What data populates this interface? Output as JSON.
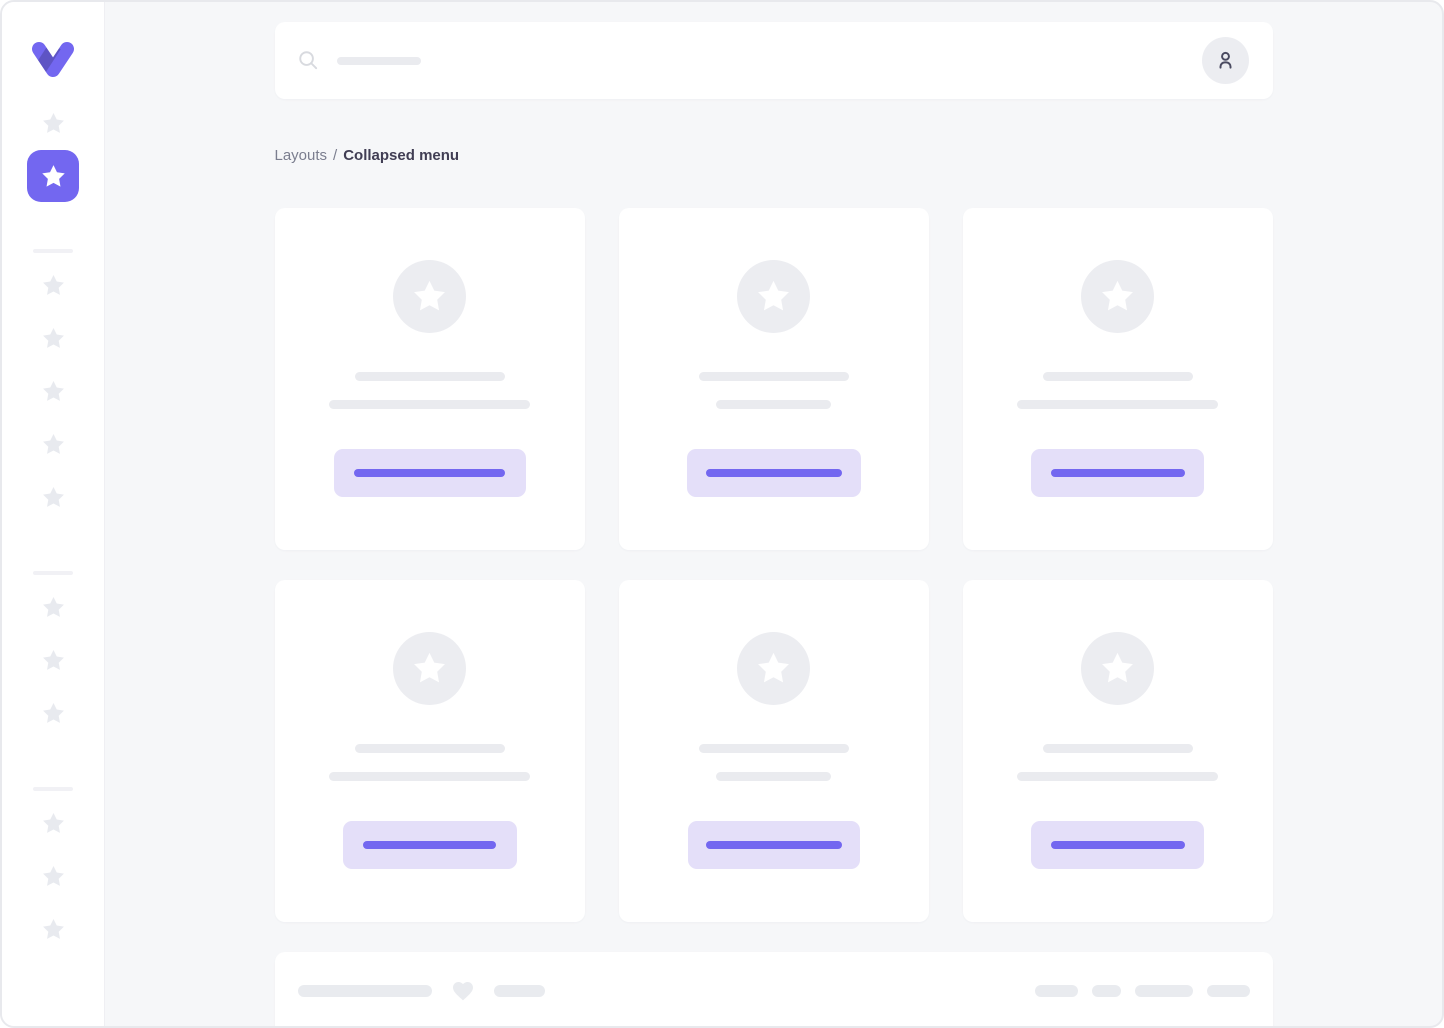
{
  "breadcrumb": {
    "section": "Layouts",
    "separator": "/",
    "current": "Collapsed menu"
  },
  "topbar": {
    "search_icon": "magnifier-icon",
    "search_placeholder_width": 84,
    "user_icon": "person-icon"
  },
  "sidebar": {
    "logo_icon": "v-logo",
    "top_items": [
      {
        "icon": "star",
        "active": false
      },
      {
        "icon": "star",
        "active": true
      }
    ],
    "groups": [
      {
        "icon": "star",
        "count": 5
      },
      {
        "icon": "star",
        "count": 3
      },
      {
        "icon": "star",
        "count": 3
      }
    ]
  },
  "cards": [
    {
      "media_icon": "star",
      "line1_width": 150,
      "line2_width": 201,
      "button_width": 192,
      "button_line_width": 151
    },
    {
      "media_icon": "star",
      "line1_width": 150,
      "line2_width": 115,
      "button_width": 174,
      "button_line_width": 136
    },
    {
      "media_icon": "star",
      "line1_width": 150,
      "line2_width": 201,
      "button_width": 173,
      "button_line_width": 134
    },
    {
      "media_icon": "star",
      "line1_width": 150,
      "line2_width": 201,
      "button_width": 174,
      "button_line_width": 133
    },
    {
      "media_icon": "star",
      "line1_width": 150,
      "line2_width": 115,
      "button_width": 172,
      "button_line_width": 136
    },
    {
      "media_icon": "star",
      "line1_width": 150,
      "line2_width": 201,
      "button_width": 173,
      "button_line_width": 134
    }
  ],
  "footer": {
    "left": [
      {
        "type": "line",
        "width": 134
      },
      {
        "type": "heart-icon"
      },
      {
        "type": "line",
        "width": 51
      }
    ],
    "right_pills": [
      43,
      29,
      58,
      43
    ]
  },
  "colors": {
    "primary": "#7367F0",
    "primary_soft": "#E4DFF9",
    "bg": "#F6F7F9",
    "border": "#E8E9ED",
    "ph": "#EAEBEF",
    "ph_strong": "#E9EBEF",
    "ph_star": "#E8EAEF",
    "circle": "#ECEDF1",
    "divider": "#F1F1F5",
    "avatar_bg": "#ECEDF1",
    "icon_muted": "#D8DADF",
    "icon_dark": "#4A4A60",
    "text_muted": "#7B7E8F",
    "text_dark": "#413E54"
  }
}
